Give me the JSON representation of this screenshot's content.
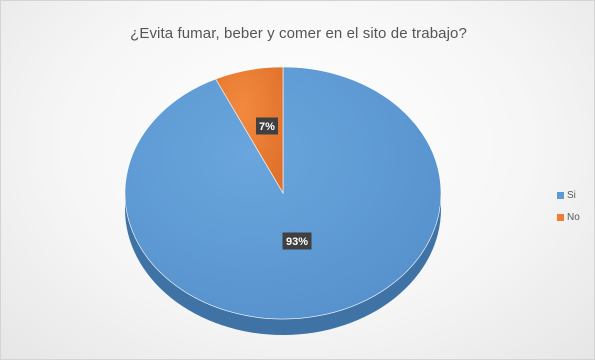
{
  "chart_data": {
    "type": "pie",
    "title": "¿Evita fumar, beber y comer en el sito de trabajo?",
    "categories": [
      "Si",
      "No"
    ],
    "values": [
      93,
      7
    ],
    "labels": [
      "93%",
      "7%"
    ],
    "colors": [
      "#5b9bd5",
      "#ed7d31"
    ],
    "legend_position": "right",
    "three_d": true
  }
}
